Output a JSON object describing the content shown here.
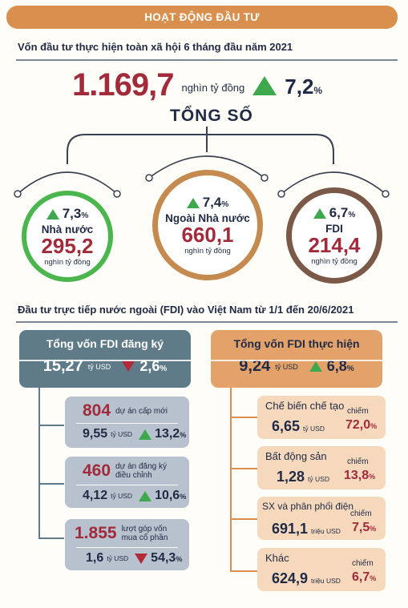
{
  "header": {
    "title": "HOẠT ĐỘNG ĐẦU TƯ"
  },
  "section1": {
    "title": "Vốn đầu tư thực hiện toàn xã hội 6 tháng đầu năm 2021",
    "total_value": "1.169,7",
    "total_unit": "nghìn tỷ đồng",
    "total_pct": "7,2",
    "pct_sign": "%",
    "total_label": "TỔNG SỐ",
    "circles": [
      {
        "label": "Nhà nước",
        "value": "295,2",
        "unit": "nghìn tỷ đồng",
        "pct": "7,3",
        "pct_sign": "%",
        "trend": "up",
        "ring_color": "#4bb54e"
      },
      {
        "label": "Ngoài Nhà nước",
        "value": "660,1",
        "unit": "nghìn tỷ đồng",
        "pct": "7,4",
        "pct_sign": "%",
        "trend": "up",
        "ring_color": "#c58a4f"
      },
      {
        "label": "FDI",
        "value": "214,4",
        "unit": "nghìn tỷ đồng",
        "pct": "6,7",
        "pct_sign": "%",
        "trend": "up",
        "ring_color": "#7b5948"
      }
    ]
  },
  "section2": {
    "title": "Đầu tư trực tiếp nước ngoài (FDI) vào Việt Nam từ 1/1 đến 20/6/2021",
    "registered": {
      "title": "Tổng vốn FDI đăng ký",
      "value": "15,27",
      "unit": "tỷ USD",
      "pct": "2,6",
      "pct_sign": "%",
      "trend": "down",
      "items": [
        {
          "count": "804",
          "desc": "dự án cấp mới",
          "value": "9,55",
          "unit": "tỷ USD",
          "pct": "13,2",
          "pct_sign": "%",
          "trend": "up"
        },
        {
          "count": "460",
          "desc": "dự án đăng ký điều chỉnh",
          "value": "4,12",
          "unit": "tỷ USD",
          "pct": "10,6",
          "pct_sign": "%",
          "trend": "up"
        },
        {
          "count": "1.855",
          "desc": "lượt góp vốn mua cổ phần",
          "value": "1,6",
          "unit": "tỷ USD",
          "pct": "54,3",
          "pct_sign": "%",
          "trend": "down"
        }
      ]
    },
    "implemented": {
      "title": "Tổng vốn FDI thực hiện",
      "value": "9,24",
      "unit": "tỷ USD",
      "pct": "6,8",
      "pct_sign": "%",
      "trend": "up",
      "share_label": "chiếm",
      "items": [
        {
          "name": "Chế biến chế tạo",
          "value": "6,65",
          "unit": "tỷ USD",
          "share": "72,0",
          "pct_sign": "%"
        },
        {
          "name": "Bất động sản",
          "value": "1,28",
          "unit": "tỷ USD",
          "share": "13,8",
          "pct_sign": "%"
        },
        {
          "name": "SX và phân phối điện",
          "value": "691,1",
          "unit": "triệu USD",
          "share": "7,5",
          "pct_sign": "%"
        },
        {
          "name": "Khác",
          "value": "624,9",
          "unit": "triệu USD",
          "share": "6,7",
          "pct_sign": "%"
        }
      ]
    }
  },
  "colors": {
    "accent_orange": "#d9904e",
    "accent_red": "#a12b3b",
    "up_green": "#3ea94c",
    "down_red": "#b32a3b",
    "card_blue": "#5f7b88"
  }
}
